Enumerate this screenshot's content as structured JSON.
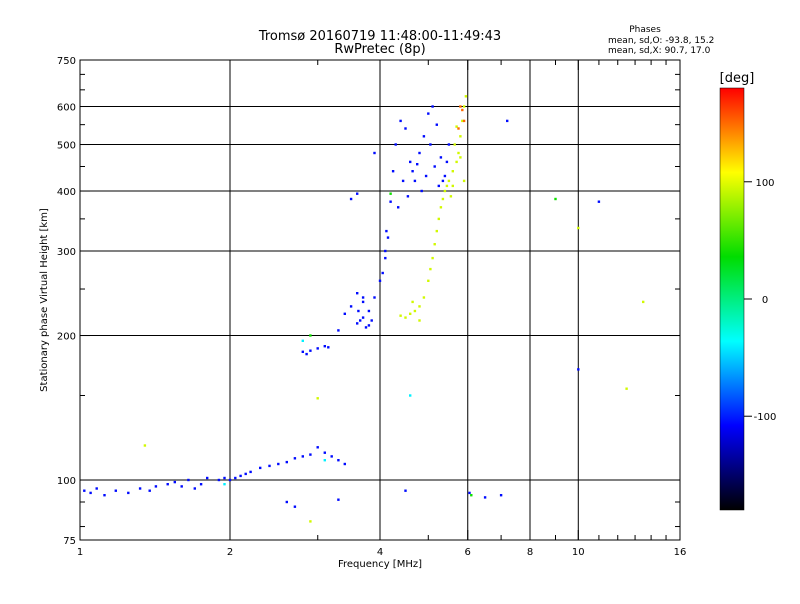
{
  "chart_data": {
    "type": "scatter",
    "title": "Tromsø 20160719 11:48:00-11:49:43",
    "subtitle": "RwPretec (8p)",
    "xlabel": "Frequency [MHz]",
    "ylabel": "Stationary phase Virtual Height [km]",
    "x_scale": "log",
    "y_scale": "log",
    "xlim": [
      1,
      16
    ],
    "ylim": [
      75,
      750
    ],
    "x_ticks": [
      1,
      2,
      4,
      6,
      8,
      10,
      16
    ],
    "x_minor_ticks": [
      3,
      5,
      7,
      9,
      11,
      12,
      13,
      14,
      15
    ],
    "y_ticks": [
      75,
      100,
      200,
      300,
      400,
      500,
      600,
      750
    ],
    "y_minor_ticks": [
      80,
      90,
      150,
      250,
      350,
      450,
      550,
      650,
      700
    ],
    "grid": true,
    "phase_box": {
      "title": "Phases",
      "line_o": "mean, sd,O: -93.8, 15.2",
      "line_x": "mean, sd,X:  90.7, 17.0"
    },
    "colorbar": {
      "label": "[deg]",
      "range": [
        -180,
        180
      ],
      "ticks": [
        100,
        0,
        -100
      ],
      "colors": [
        "#ff0000",
        "#ffff00",
        "#00dd00",
        "#00ffff",
        "#0000ff",
        "#000000"
      ]
    },
    "series": [
      {
        "phase": -105,
        "points": [
          [
            1.02,
            95
          ],
          [
            1.05,
            94
          ],
          [
            1.08,
            96
          ],
          [
            1.12,
            93
          ],
          [
            1.18,
            95
          ],
          [
            1.25,
            94
          ],
          [
            1.32,
            96
          ],
          [
            1.38,
            95
          ],
          [
            1.42,
            97
          ],
          [
            1.5,
            98
          ],
          [
            1.55,
            99
          ],
          [
            1.6,
            97
          ],
          [
            1.65,
            100
          ],
          [
            1.7,
            96
          ],
          [
            1.75,
            98
          ],
          [
            1.8,
            101
          ],
          [
            1.9,
            100
          ],
          [
            1.95,
            101
          ],
          [
            2.0,
            100
          ],
          [
            2.05,
            101
          ],
          [
            2.1,
            102
          ],
          [
            2.15,
            103
          ],
          [
            2.2,
            104
          ],
          [
            2.3,
            106
          ],
          [
            2.4,
            107
          ],
          [
            2.5,
            108
          ],
          [
            2.6,
            109
          ],
          [
            2.7,
            111
          ],
          [
            2.8,
            112
          ],
          [
            2.9,
            113
          ],
          [
            3.0,
            117
          ],
          [
            3.1,
            114
          ],
          [
            3.2,
            112
          ],
          [
            3.3,
            110
          ],
          [
            3.4,
            108
          ],
          [
            2.6,
            90
          ],
          [
            2.7,
            88
          ],
          [
            3.3,
            91
          ],
          [
            2.8,
            185
          ],
          [
            2.85,
            183
          ],
          [
            2.9,
            186
          ],
          [
            3.0,
            188
          ],
          [
            3.1,
            190
          ],
          [
            3.15,
            189
          ],
          [
            3.3,
            205
          ],
          [
            3.4,
            222
          ],
          [
            3.5,
            230
          ],
          [
            3.6,
            245
          ],
          [
            3.7,
            235
          ],
          [
            3.8,
            225
          ],
          [
            3.9,
            240
          ],
          [
            4.0,
            260
          ],
          [
            4.1,
            290
          ],
          [
            4.15,
            320
          ],
          [
            4.2,
            380
          ],
          [
            4.25,
            440
          ],
          [
            4.3,
            500
          ],
          [
            4.4,
            560
          ],
          [
            4.5,
            540
          ],
          [
            4.6,
            460
          ],
          [
            4.7,
            420
          ],
          [
            4.8,
            480
          ],
          [
            4.9,
            520
          ],
          [
            5.0,
            580
          ],
          [
            5.1,
            600
          ],
          [
            5.2,
            550
          ],
          [
            5.3,
            470
          ],
          [
            5.4,
            430
          ],
          [
            3.7,
            240
          ],
          [
            3.65,
            215
          ],
          [
            3.6,
            212
          ],
          [
            3.62,
            225
          ],
          [
            3.7,
            218
          ],
          [
            3.75,
            208
          ],
          [
            3.8,
            210
          ],
          [
            3.85,
            215
          ],
          [
            4.05,
            270
          ],
          [
            4.1,
            300
          ],
          [
            4.12,
            330
          ],
          [
            4.35,
            370
          ],
          [
            4.45,
            420
          ],
          [
            4.55,
            390
          ],
          [
            4.65,
            440
          ],
          [
            4.75,
            455
          ],
          [
            4.85,
            400
          ],
          [
            4.95,
            430
          ],
          [
            5.05,
            500
          ],
          [
            5.15,
            450
          ],
          [
            5.25,
            410
          ],
          [
            5.35,
            420
          ],
          [
            5.45,
            460
          ],
          [
            5.5,
            500
          ],
          [
            3.5,
            385
          ],
          [
            3.6,
            395
          ],
          [
            3.9,
            480
          ],
          [
            4.5,
            95
          ],
          [
            6.05,
            94
          ],
          [
            6.5,
            92
          ],
          [
            7.0,
            93
          ],
          [
            7.2,
            560
          ],
          [
            10.0,
            170
          ],
          [
            11.0,
            380
          ]
        ]
      },
      {
        "phase": 95,
        "points": [
          [
            4.4,
            220
          ],
          [
            4.5,
            218
          ],
          [
            4.6,
            222
          ],
          [
            4.7,
            225
          ],
          [
            4.8,
            230
          ],
          [
            4.9,
            240
          ],
          [
            5.0,
            260
          ],
          [
            5.1,
            290
          ],
          [
            5.2,
            330
          ],
          [
            5.3,
            370
          ],
          [
            5.4,
            400
          ],
          [
            5.5,
            420
          ],
          [
            5.6,
            440
          ],
          [
            5.7,
            460
          ],
          [
            5.75,
            480
          ],
          [
            5.8,
            520
          ],
          [
            5.85,
            560
          ],
          [
            5.9,
            600
          ],
          [
            5.95,
            630
          ],
          [
            4.65,
            235
          ],
          [
            4.8,
            215
          ],
          [
            5.05,
            275
          ],
          [
            5.25,
            350
          ],
          [
            5.45,
            410
          ],
          [
            5.55,
            390
          ],
          [
            5.65,
            500
          ],
          [
            5.7,
            545
          ],
          [
            5.8,
            470
          ],
          [
            5.9,
            420
          ],
          [
            5.6,
            410
          ],
          [
            5.35,
            385
          ],
          [
            5.15,
            310
          ],
          [
            13.5,
            235
          ],
          [
            12.5,
            155
          ],
          [
            10.0,
            335
          ],
          [
            1.35,
            118
          ],
          [
            3.0,
            148
          ],
          [
            2.9,
            82
          ]
        ]
      },
      {
        "phase": 150,
        "points": [
          [
            5.8,
            600
          ],
          [
            5.85,
            590
          ],
          [
            5.9,
            560
          ],
          [
            5.75,
            540
          ]
        ]
      },
      {
        "phase": 40,
        "points": [
          [
            2.9,
            200
          ],
          [
            4.2,
            395
          ],
          [
            9.0,
            385
          ],
          [
            6.1,
            93
          ]
        ]
      },
      {
        "phase": -40,
        "points": [
          [
            2.8,
            195
          ],
          [
            3.1,
            110
          ],
          [
            1.95,
            98
          ],
          [
            4.6,
            150
          ]
        ]
      }
    ]
  }
}
